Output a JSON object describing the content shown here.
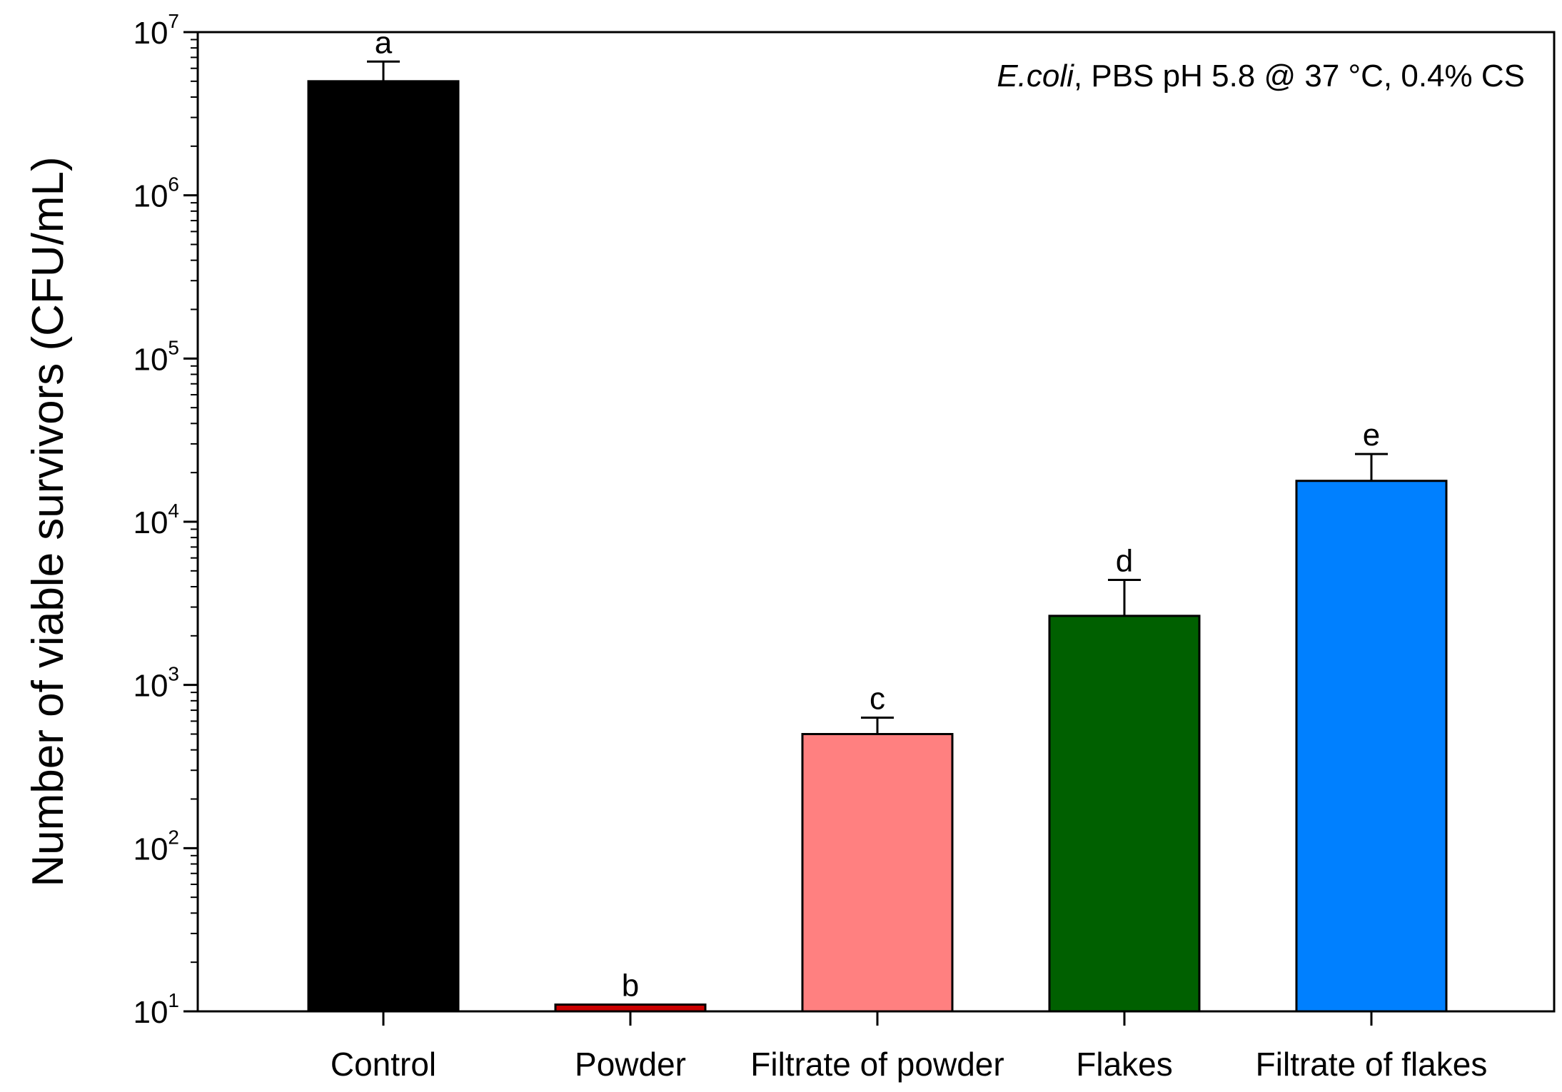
{
  "chart_data": {
    "type": "bar",
    "title": "",
    "xlabel": "",
    "ylabel": "Number of viable survivors (CFU/mL)",
    "yscale": "log",
    "ylim": [
      10,
      10000000
    ],
    "ytick_labels": [
      {
        "base": "10",
        "exp": "1",
        "value": 10
      },
      {
        "base": "10",
        "exp": "2",
        "value": 100
      },
      {
        "base": "10",
        "exp": "3",
        "value": 1000
      },
      {
        "base": "10",
        "exp": "4",
        "value": 10000
      },
      {
        "base": "10",
        "exp": "5",
        "value": 100000
      },
      {
        "base": "10",
        "exp": "6",
        "value": 1000000
      },
      {
        "base": "10",
        "exp": "7",
        "value": 10000000
      }
    ],
    "annotation": {
      "italic": "E.coli",
      "rest": ", PBS pH 5.8 @  37 °C, 0.4% CS"
    },
    "categories": [
      "Control",
      "Powder",
      "Filtrate of powder",
      "Flakes",
      "Filtrate of flakes"
    ],
    "values": [
      5000000,
      11,
      500,
      2650,
      17800
    ],
    "error_upper": [
      6600000,
      11,
      630,
      4400,
      26000
    ],
    "significance": [
      "a",
      "b",
      "c",
      "d",
      "e"
    ],
    "colors": [
      "#000000",
      "#cc0000",
      "#ff8080",
      "#006000",
      "#0080ff"
    ],
    "grid": false,
    "legend": "none"
  }
}
